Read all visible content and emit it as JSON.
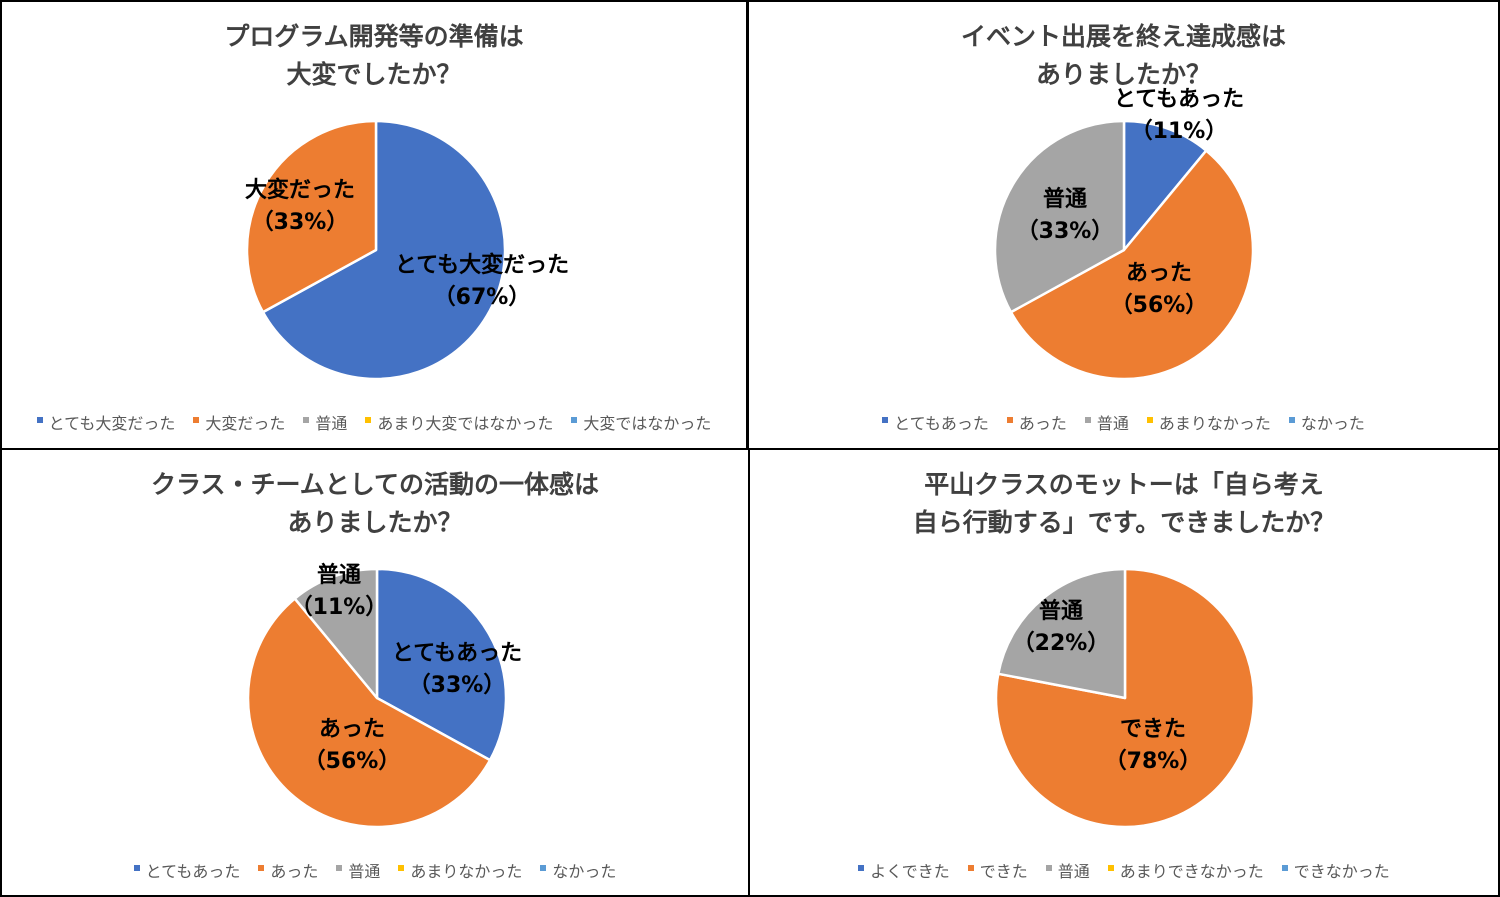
{
  "colors": {
    "blue": "#4472C4",
    "orange": "#ED7D31",
    "gray": "#A5A5A5",
    "yellow": "#FFC000",
    "lightblue": "#5B9BD5"
  },
  "chart_data": [
    {
      "type": "pie",
      "title_lines": [
        "プログラム開発等の準備は",
        "大変でしたか？"
      ],
      "categories": [
        "とても大変だった",
        "大変だった",
        "普通",
        "あまり大変ではなかった",
        "大変ではなかった"
      ],
      "values": [
        67,
        33,
        0,
        0,
        0
      ],
      "data_labels": [
        "とても大変だった",
        "大変だった",
        "",
        "",
        ""
      ],
      "percent_labels": [
        "（67%）",
        "（33%）",
        "",
        "",
        ""
      ],
      "legend_position": "bottom"
    },
    {
      "type": "pie",
      "title_lines": [
        "イベント出展を終え達成感は",
        "ありましたか？"
      ],
      "categories": [
        "とてもあった",
        "あった",
        "普通",
        "あまりなかった",
        "なかった"
      ],
      "values": [
        11,
        56,
        33,
        0,
        0
      ],
      "data_labels": [
        "とてもあった",
        "あった",
        "普通",
        "",
        ""
      ],
      "percent_labels": [
        "（11%）",
        "（56%）",
        "（33%）",
        "",
        ""
      ],
      "legend_position": "bottom"
    },
    {
      "type": "pie",
      "title_lines": [
        "クラス・チームとしての活動の一体感は",
        "ありましたか？"
      ],
      "categories": [
        "とてもあった",
        "あった",
        "普通",
        "あまりなかった",
        "なかった"
      ],
      "values": [
        33,
        56,
        11,
        0,
        0
      ],
      "data_labels": [
        "とてもあった",
        "あった",
        "普通",
        "",
        ""
      ],
      "percent_labels": [
        "（33%）",
        "（56%）",
        "（11%）",
        "",
        ""
      ],
      "legend_position": "bottom"
    },
    {
      "type": "pie",
      "title_lines": [
        "平山クラスのモットーは「自ら考え",
        "自ら行動する」です。できましたか？"
      ],
      "categories": [
        "よくできた",
        "できた",
        "普通",
        "あまりできなかった",
        "できなかった"
      ],
      "values": [
        0,
        78,
        22,
        0,
        0
      ],
      "data_labels": [
        "",
        "できた",
        "普通",
        "",
        ""
      ],
      "percent_labels": [
        "",
        "（78%）",
        "（22%）",
        "",
        ""
      ],
      "legend_position": "bottom"
    }
  ]
}
